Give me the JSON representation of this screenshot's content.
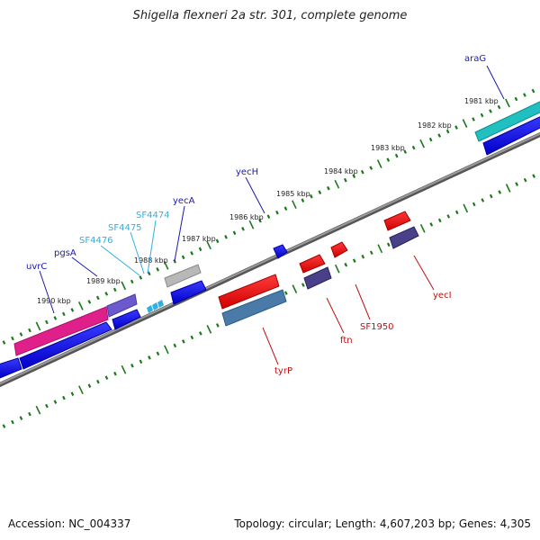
{
  "title": "Shigella flexneri 2a str. 301, complete genome",
  "accession_text": "Accession: NC_004337",
  "summary_text": "Topology: circular; Length: 4,607,203 bp; Genes: 4,305",
  "kbp_labels": [
    "1981 kbp",
    "1982 kbp",
    "1983 kbp",
    "1984 kbp",
    "1985 kbp",
    "1986 kbp",
    "1987 kbp",
    "1988 kbp",
    "1989 kbp",
    "1990 kbp"
  ],
  "gene_labels": {
    "araG": "araG",
    "yecH": "yecH",
    "yecA": "yecA",
    "SF4474": "SF4474",
    "SF4475": "SF4475",
    "SF4476": "SF4476",
    "pgsA": "pgsA",
    "uvrC": "uvrC",
    "tyrP": "tyrP",
    "ftn": "ftn",
    "SF1950": "SF1950",
    "yecI": "yecI"
  },
  "colors": {
    "forward_gene": "#1010e0",
    "reverse_gene": "#e01010",
    "pink_gene": "#e0208a",
    "cyan_gene": "#20c0c0",
    "purple_gene": "#6a5acd",
    "gray_gene": "#b0b0b0",
    "steel_gene": "#4a7aa8",
    "slate_gene": "#4a4088",
    "backbone": "#707070",
    "tick_green": "#1a7a1a",
    "label_navy": "#1a1ab0",
    "label_cyan": "#30b0e0",
    "label_red": "#c01010"
  }
}
